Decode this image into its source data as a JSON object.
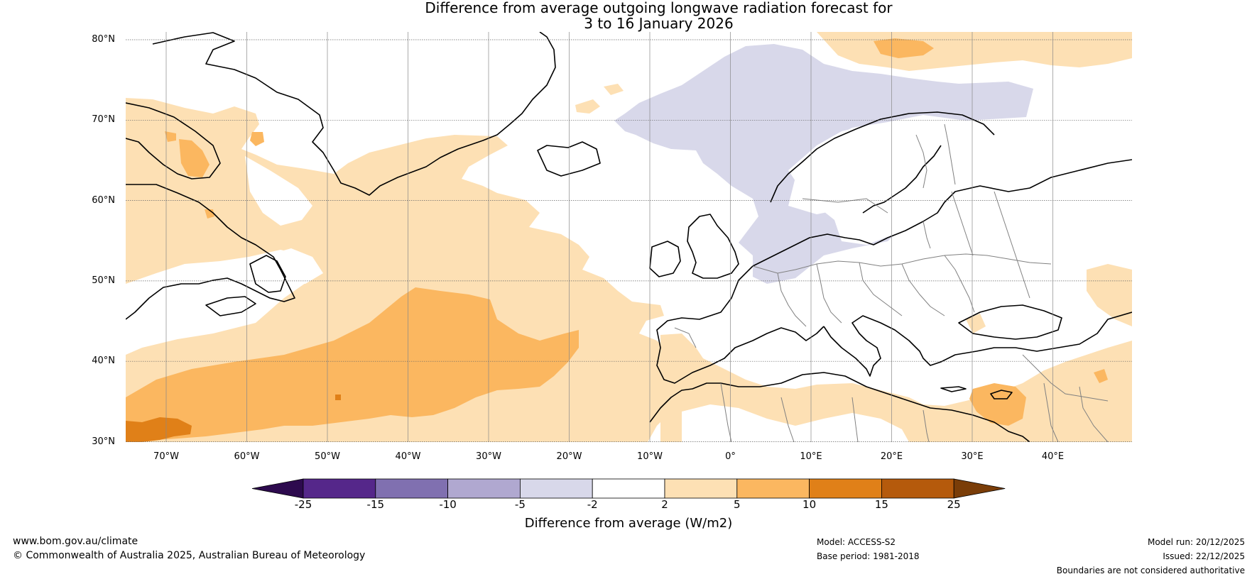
{
  "title_line1": "Difference from average outgoing longwave radiation forecast for",
  "title_line2": "3 to 16 January 2026",
  "lat_labels": [
    "80°N",
    "70°N",
    "60°N",
    "50°N",
    "40°N",
    "30°N"
  ],
  "lon_labels": [
    "70°W",
    "60°W",
    "50°W",
    "40°W",
    "30°W",
    "20°W",
    "10°W",
    "0°",
    "10°E",
    "20°E",
    "30°E",
    "40°E"
  ],
  "colorbar": {
    "ticks": [
      "-25",
      "-15",
      "-10",
      "-5",
      "-2",
      "2",
      "5",
      "10",
      "15",
      "25"
    ],
    "label": "Difference from average (W/m2)",
    "colors": {
      "under": "#2d0a4e",
      "bins": [
        "#55278a",
        "#8070b0",
        "#b0a8d0",
        "#d8d8ea",
        "#ffffff",
        "#fde0b4",
        "#fbb760",
        "#e08018",
        "#b55a0c"
      ],
      "over": "#7a3d08"
    }
  },
  "map_colors": {
    "light_purple": "#d8d8ea",
    "light_orange": "#fde0b4",
    "orange": "#fbb760",
    "dark_orange": "#e08018",
    "coast": "#000000",
    "border": "#808080"
  },
  "footer": {
    "website": "www.bom.gov.au/climate",
    "copyright": "© Commonwealth of Australia 2025, Australian Bureau of Meteorology",
    "model": "Model: ACCESS-S2",
    "base_period": "Base period: 1981-2018",
    "model_run": "Model run: 20/12/2025",
    "issued": "Issued: 22/12/2025",
    "disclaimer": "Boundaries are not considered authoritative"
  }
}
